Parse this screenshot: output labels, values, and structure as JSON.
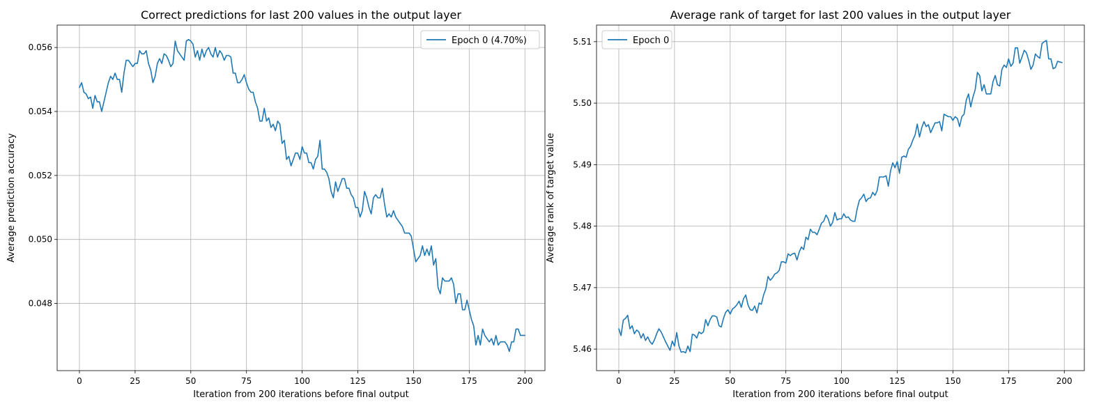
{
  "colors": {
    "series": "#1f77b4",
    "grid": "#b0b0b0"
  },
  "chart_data": [
    {
      "type": "line",
      "title": "Correct predictions for last 200 values in the output layer",
      "xlabel": "Iteration from 200 iterations before final output",
      "ylabel": "Average prediction accuracy",
      "xlim": [
        -10,
        209
      ],
      "ylim": [
        0.0459,
        0.0567
      ],
      "xticks": [
        0,
        25,
        50,
        75,
        100,
        125,
        150,
        175,
        200
      ],
      "yticks": [
        0.048,
        0.05,
        0.052,
        0.054,
        0.056
      ],
      "xtick_labels": [
        "0",
        "25",
        "50",
        "75",
        "100",
        "125",
        "150",
        "175",
        "200"
      ],
      "ytick_labels": [
        "0.048",
        "0.050",
        "0.052",
        "0.054",
        "0.056"
      ],
      "grid": true,
      "legend": "top-right",
      "series": [
        {
          "name": "Epoch 0 (4.70%)",
          "x_start": 0,
          "x_step": 1,
          "y": [
            0.05475,
            0.0549,
            0.0546,
            0.05455,
            0.0544,
            0.05445,
            0.0541,
            0.0545,
            0.0543,
            0.0543,
            0.054,
            0.0543,
            0.0546,
            0.0549,
            0.0551,
            0.055,
            0.0552,
            0.055,
            0.055,
            0.0546,
            0.0552,
            0.0556,
            0.0556,
            0.0555,
            0.0554,
            0.0555,
            0.0555,
            0.0559,
            0.0558,
            0.0558,
            0.0559,
            0.0555,
            0.0553,
            0.0549,
            0.0551,
            0.0555,
            0.05565,
            0.0555,
            0.0558,
            0.05575,
            0.0556,
            0.0554,
            0.0555,
            0.0562,
            0.0559,
            0.0558,
            0.0557,
            0.0556,
            0.0562,
            0.05625,
            0.0562,
            0.0561,
            0.0557,
            0.0559,
            0.0556,
            0.05595,
            0.0557,
            0.0559,
            0.056,
            0.0558,
            0.0557,
            0.056,
            0.0557,
            0.0559,
            0.0558,
            0.0556,
            0.05575,
            0.05575,
            0.0557,
            0.0552,
            0.0552,
            0.0549,
            0.0549,
            0.055,
            0.05515,
            0.0549,
            0.0547,
            0.0546,
            0.0546,
            0.0543,
            0.0541,
            0.0537,
            0.0537,
            0.0541,
            0.0537,
            0.0538,
            0.0535,
            0.0536,
            0.0534,
            0.0537,
            0.0536,
            0.053,
            0.0531,
            0.0525,
            0.0526,
            0.0523,
            0.0525,
            0.0527,
            0.0527,
            0.0525,
            0.0529,
            0.0527,
            0.0527,
            0.0524,
            0.0524,
            0.0522,
            0.0525,
            0.0526,
            0.0531,
            0.0522,
            0.0522,
            0.0521,
            0.0519,
            0.0515,
            0.0513,
            0.0518,
            0.0515,
            0.0517,
            0.0519,
            0.0519,
            0.0516,
            0.0516,
            0.0514,
            0.0513,
            0.051,
            0.051,
            0.0507,
            0.0509,
            0.0515,
            0.0513,
            0.051,
            0.0508,
            0.0513,
            0.0514,
            0.0513,
            0.0513,
            0.0516,
            0.0511,
            0.0507,
            0.0508,
            0.0507,
            0.0509,
            0.0507,
            0.0506,
            0.0505,
            0.0504,
            0.0502,
            0.0502,
            0.0502,
            0.0501,
            0.0497,
            0.0493,
            0.0494,
            0.0495,
            0.0498,
            0.0495,
            0.0497,
            0.0495,
            0.0498,
            0.0492,
            0.0494,
            0.0485,
            0.0483,
            0.0488,
            0.0487,
            0.0487,
            0.0487,
            0.0488,
            0.0486,
            0.048,
            0.0483,
            0.0483,
            0.0478,
            0.0478,
            0.0481,
            0.0478,
            0.0475,
            0.0473,
            0.0467,
            0.047,
            0.0467,
            0.0472,
            0.047,
            0.0469,
            0.0468,
            0.0469,
            0.0467,
            0.047,
            0.0467,
            0.0468,
            0.0468,
            0.0468,
            0.0467,
            0.0465,
            0.0468,
            0.0468,
            0.0472,
            0.0472,
            0.047,
            0.047,
            0.047
          ]
        }
      ]
    },
    {
      "type": "line",
      "title": "Average rank of target for last 200 values in the output layer",
      "xlabel": "Iteration from 200 iterations before final output",
      "ylabel": "Average rank of target value",
      "xlim": [
        -10,
        209
      ],
      "ylim": [
        5.4565,
        5.5127
      ],
      "xticks": [
        0,
        25,
        50,
        75,
        100,
        125,
        150,
        175,
        200
      ],
      "yticks": [
        5.46,
        5.47,
        5.48,
        5.49,
        5.5,
        5.51
      ],
      "xtick_labels": [
        "0",
        "25",
        "50",
        "75",
        "100",
        "125",
        "150",
        "175",
        "200"
      ],
      "ytick_labels": [
        "5.46",
        "5.47",
        "5.48",
        "5.49",
        "5.50",
        "5.51"
      ],
      "grid": true,
      "legend": "top-left",
      "series": [
        {
          "name": "Epoch 0",
          "x_start": 0,
          "x_step": 1,
          "y": [
            5.4633,
            5.4622,
            5.4647,
            5.465,
            5.4655,
            5.4633,
            5.4638,
            5.4625,
            5.4631,
            5.4628,
            5.4618,
            5.4625,
            5.4614,
            5.462,
            5.4612,
            5.4608,
            5.4615,
            5.4625,
            5.4633,
            5.4628,
            5.462,
            5.4612,
            5.4605,
            5.4598,
            5.4613,
            5.4605,
            5.4627,
            5.4605,
            5.4595,
            5.4596,
            5.4594,
            5.4605,
            5.4596,
            5.4624,
            5.4623,
            5.4618,
            5.4628,
            5.4625,
            5.4628,
            5.4648,
            5.4638,
            5.4648,
            5.4654,
            5.4654,
            5.4652,
            5.4638,
            5.4636,
            5.465,
            5.466,
            5.4664,
            5.4657,
            5.4665,
            5.4668,
            5.4672,
            5.4678,
            5.4668,
            5.4682,
            5.4688,
            5.4672,
            5.4664,
            5.4663,
            5.467,
            5.4659,
            5.4675,
            5.4673,
            5.4688,
            5.4698,
            5.4718,
            5.4712,
            5.4716,
            5.4722,
            5.4724,
            5.4728,
            5.4742,
            5.4742,
            5.474,
            5.4755,
            5.4752,
            5.4755,
            5.4756,
            5.4745,
            5.4758,
            5.4766,
            5.4762,
            5.4782,
            5.4778,
            5.4795,
            5.479,
            5.479,
            5.4786,
            5.4795,
            5.4805,
            5.4808,
            5.4818,
            5.4812,
            5.48,
            5.4806,
            5.4822,
            5.481,
            5.4812,
            5.4812,
            5.482,
            5.4814,
            5.4815,
            5.481,
            5.4808,
            5.4808,
            5.4828,
            5.4842,
            5.4846,
            5.4852,
            5.484,
            5.4845,
            5.4846,
            5.4855,
            5.485,
            5.4858,
            5.488,
            5.488,
            5.488,
            5.4882,
            5.4865,
            5.489,
            5.4903,
            5.4895,
            5.4905,
            5.4886,
            5.4912,
            5.4914,
            5.4912,
            5.4925,
            5.493,
            5.494,
            5.4948,
            5.4966,
            5.4945,
            5.496,
            5.497,
            5.4962,
            5.4965,
            5.4952,
            5.496,
            5.4968,
            5.4968,
            5.497,
            5.4955,
            5.4982,
            5.498,
            5.4978,
            5.4978,
            5.4972,
            5.4978,
            5.4975,
            5.4962,
            5.4978,
            5.4982,
            5.5005,
            5.5015,
            5.4994,
            5.501,
            5.5022,
            5.505,
            5.5045,
            5.502,
            5.503,
            5.5015,
            5.5015,
            5.5015,
            5.5035,
            5.5045,
            5.503,
            5.5028,
            5.5055,
            5.5062,
            5.5058,
            5.5072,
            5.506,
            5.5065,
            5.509,
            5.509,
            5.5065,
            5.5075,
            5.5086,
            5.5082,
            5.507,
            5.5055,
            5.5062,
            5.508,
            5.5076,
            5.5073,
            5.5097,
            5.51,
            5.5102,
            5.5072,
            5.5072,
            5.5056,
            5.5058,
            5.5068,
            5.5067,
            5.5066
          ]
        }
      ]
    }
  ]
}
